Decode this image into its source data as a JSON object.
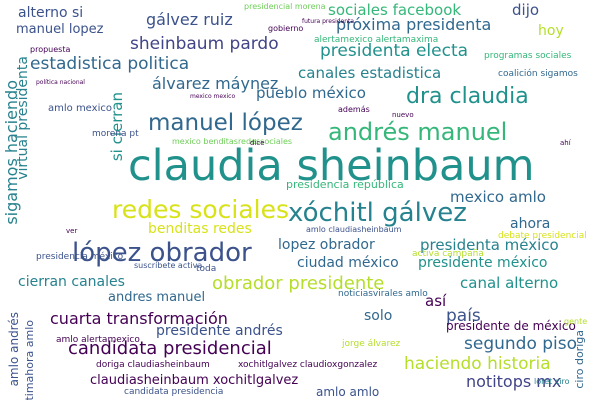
{
  "word_cloud": {
    "colors": {
      "purple": "#440154",
      "indigo": "#3b528b",
      "slate": "#414487",
      "blue": "#31688e",
      "teal": "#21918c",
      "sea": "#26828e",
      "green": "#35b779",
      "lime": "#6ece58",
      "yellow": "#b5de2b",
      "gold": "#d8e219"
    },
    "words": [
      "claudia sheinbaum",
      "redes sociales",
      "xóchitl gálvez",
      "lópez obrador",
      "manuel lópez",
      "andrés manuel",
      "dra claudia",
      "candidata presidencial",
      "obrador presidente",
      "cuarta transformación",
      "presidenta electa",
      "sheinbaum pardo",
      "estadistica politica",
      "álvarez máynez",
      "pueblo méxico",
      "canales estadistica",
      "gálvez ruiz",
      "próxima presidenta",
      "sociales facebook",
      "alterno si",
      "manuel lopez",
      "dijo",
      "hoy",
      "haciendo historia",
      "segundo piso",
      "país",
      "canal alterno",
      "presidenta méxico",
      "presidente méxico",
      "presidente andrés",
      "claudiasheinbaum xochitlgalvez",
      "notitops mx",
      "benditas redes",
      "mexico amlo",
      "ciudad méxico",
      "cierran canales",
      "andres manuel",
      "lopez obrador",
      "solo",
      "así",
      "ahora",
      "sigamos haciendo",
      "virtual presidenta",
      "si cierran",
      "amlo andrés",
      "presidencia república",
      "debate presidencial",
      "presidente de méxico",
      "amlo mexico",
      "mexico benditasredessociales",
      "coalición sigamos",
      "programas sociales",
      "alertamexico alertamaxima",
      "amlo alertamexico",
      "presidencia méxico",
      "doriga claudiasheinbaum",
      "xochitlgalvez claudioxgonzalez",
      "ultimahora amlo",
      "noticiasvirales amlo",
      "jorge álvarez",
      "amlo amlo",
      "morena pt",
      "candidata presidencia",
      "ciro doriga",
      "activa campaña",
      "suscríbete activa",
      "gobierno",
      "propuesta",
      "además",
      "loret ciro",
      "gente",
      "toda",
      "amlo claudiasheinbaum",
      "presidencial morena",
      "futura presidenta",
      "política nacional",
      "mexico mexico",
      "dice",
      "nuevo",
      "ahí",
      "ver"
    ]
  }
}
